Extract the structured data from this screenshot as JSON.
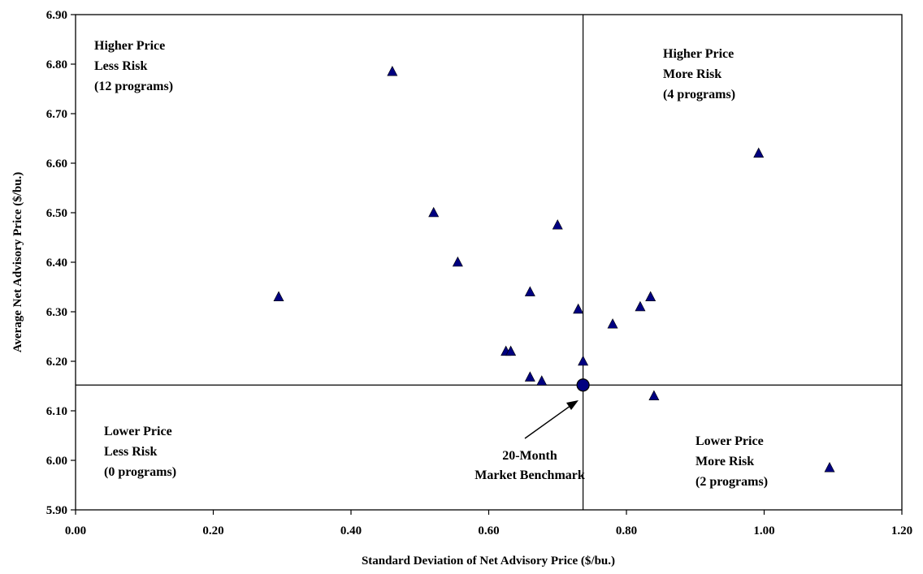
{
  "chart_data": {
    "type": "scatter",
    "xlabel": "Standard Deviation of Net Advisory Price ($/bu.)",
    "ylabel": "Average Net Advisory Price ($/bu.)",
    "xlim": [
      0.0,
      1.2
    ],
    "ylim": [
      5.9,
      6.9
    ],
    "xticks": [
      "0.00",
      "0.20",
      "0.40",
      "0.60",
      "0.80",
      "1.00",
      "1.20"
    ],
    "yticks": [
      "5.90",
      "6.00",
      "6.10",
      "6.20",
      "6.30",
      "6.40",
      "6.50",
      "6.60",
      "6.70",
      "6.80",
      "6.90"
    ],
    "grid": false,
    "legend": "none",
    "series": [
      {
        "marker": "triangle",
        "color": "#000080",
        "points": [
          [
            0.295,
            6.33
          ],
          [
            0.46,
            6.785
          ],
          [
            0.52,
            6.5
          ],
          [
            0.555,
            6.4
          ],
          [
            0.625,
            6.22
          ],
          [
            0.632,
            6.22
          ],
          [
            0.66,
            6.34
          ],
          [
            0.66,
            6.168
          ],
          [
            0.677,
            6.16
          ],
          [
            0.7,
            6.475
          ],
          [
            0.73,
            6.305
          ],
          [
            0.737,
            6.2
          ],
          [
            0.78,
            6.275
          ],
          [
            0.82,
            6.31
          ],
          [
            0.835,
            6.33
          ],
          [
            0.84,
            6.13
          ],
          [
            0.992,
            6.62
          ],
          [
            1.095,
            5.985
          ]
        ]
      }
    ],
    "benchmark": {
      "x": 0.737,
      "y": 6.152,
      "marker": "circle",
      "color": "#000080",
      "label_lines": [
        "20-Month",
        "Market Benchmark"
      ]
    },
    "quadrants": {
      "top_left": [
        "Higher Price",
        "Less Risk",
        "(12 programs)"
      ],
      "top_right": [
        "Higher Price",
        "More Risk",
        "(4 programs)"
      ],
      "bottom_left": [
        "Lower Price",
        "Less Risk",
        "(0 programs)"
      ],
      "bottom_right": [
        "Lower Price",
        "More Risk",
        "(2 programs)"
      ]
    }
  }
}
